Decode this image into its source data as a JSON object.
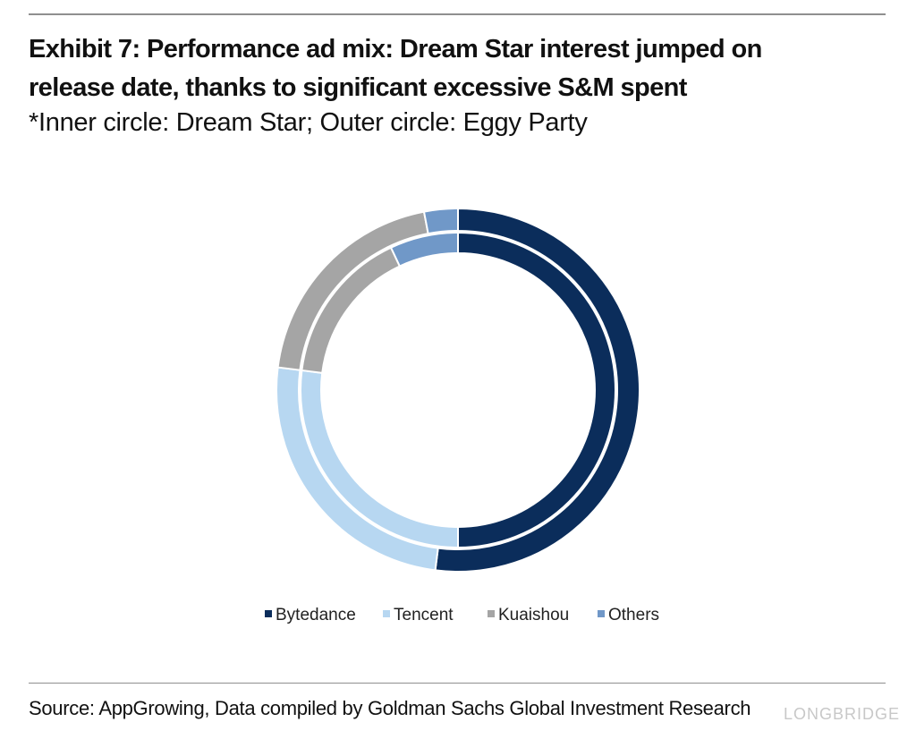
{
  "header": {
    "title_line1": "Exhibit 7: Performance ad mix: Dream Star interest jumped on",
    "title_line2": "release date, thanks to significant excessive S&M spent",
    "subtitle": "*Inner circle: Dream Star; Outer circle: Eggy Party"
  },
  "footer": {
    "source": "Source: AppGrowing, Data compiled by Goldman Sachs Global Investment Research",
    "watermark": "LONGBRIDGE"
  },
  "chart_data": {
    "type": "pie",
    "variant": "doughnut",
    "title": "",
    "categories": [
      "Bytedance",
      "Tencent",
      "Kuaishou",
      "Others"
    ],
    "colors": [
      "#0b2d5b",
      "#b7d7f1",
      "#a5a5a5",
      "#7098c8"
    ],
    "series": [
      {
        "ring": "outer",
        "values": [
          52,
          25,
          20,
          3
        ]
      },
      {
        "ring": "inner",
        "values": [
          50,
          27,
          16,
          7
        ]
      }
    ],
    "legend": {
      "position": "bottom"
    }
  }
}
